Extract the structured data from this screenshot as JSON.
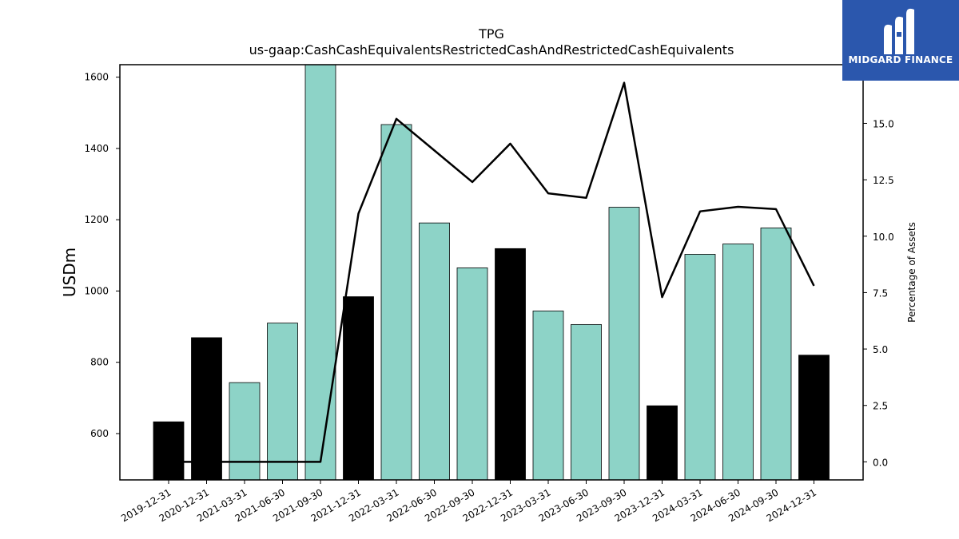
{
  "brand": {
    "name": "MIDGARD FINANCE",
    "logo_icon": "midgard-m-logo-icon",
    "color": "#2b57ad"
  },
  "chart_data": {
    "type": "bar",
    "title": "TPG",
    "subtitle": "us-gaap:CashCashEquivalentsRestrictedCashAndRestrictedCashEquivalents",
    "ylabel": "USDm",
    "y2label": "Percentage of Assets",
    "ylim": [
      470,
      1635
    ],
    "y2lim": [
      -0.8,
      17.6
    ],
    "yticks": [
      600,
      800,
      1000,
      1200,
      1400,
      1600
    ],
    "y2ticks": [
      0.0,
      2.5,
      5.0,
      7.5,
      10.0,
      12.5,
      15.0
    ],
    "y2tick_labels": [
      "0.0",
      "2.5",
      "5.0",
      "7.5",
      "10.0",
      "12.5",
      "15.0"
    ],
    "categories": [
      "2019-12-31",
      "2020-12-31",
      "2021-03-31",
      "2021-06-30",
      "2021-09-30",
      "2021-12-31",
      "2022-03-31",
      "2022-06-30",
      "2022-09-30",
      "2022-12-31",
      "2023-03-31",
      "2023-06-30",
      "2023-09-30",
      "2023-12-31",
      "2024-03-31",
      "2024-06-30",
      "2024-09-30",
      "2024-12-31"
    ],
    "values": [
      633,
      869,
      743,
      910,
      1640,
      984,
      1467,
      1191,
      1065,
      1119,
      944,
      906,
      1235,
      678,
      1103,
      1132,
      1177,
      820
    ],
    "annual": [
      true,
      true,
      false,
      false,
      false,
      true,
      false,
      false,
      false,
      true,
      false,
      false,
      false,
      true,
      false,
      false,
      false,
      true
    ],
    "line_values": [
      0.0,
      0.0,
      0.0,
      0.0,
      0.0,
      11.0,
      15.2,
      13.8,
      12.4,
      14.1,
      11.9,
      11.7,
      16.8,
      7.3,
      11.1,
      11.3,
      11.2,
      7.8
    ],
    "colors": {
      "annual_bar": "#000000",
      "quarter_bar": "#8dd3c7",
      "line": "#000000"
    },
    "grid": false,
    "legend": "none"
  }
}
